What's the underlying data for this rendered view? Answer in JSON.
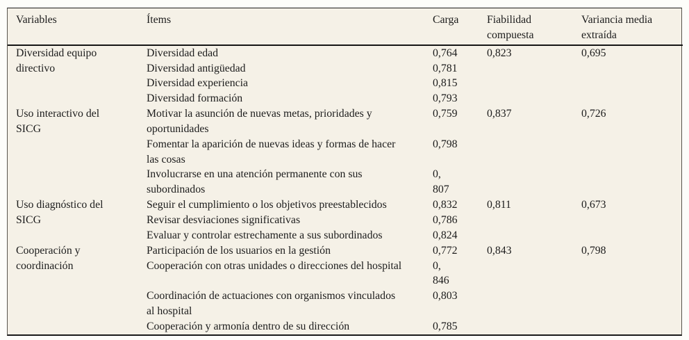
{
  "page": {
    "background": "#fdfdfa"
  },
  "table": {
    "background": "#f5f1e7",
    "rule_color": "#1a1a1a",
    "text_color": "#1c1c1c",
    "header": {
      "variables": "Variables",
      "items": "Ítems",
      "carga": "Carga",
      "fiabilidad": "Fiabilidad\ncompuesta",
      "varianza": "Variancia media\nextraída"
    },
    "groups": [
      {
        "variable": "Diversidad equipo\ndirectivo",
        "fiabilidad": "0,823",
        "varianza": "0,695",
        "items": [
          {
            "label": "Diversidad edad",
            "carga": "0,764"
          },
          {
            "label": "Diversidad antigüedad",
            "carga": "0,781"
          },
          {
            "label": "Diversidad experiencia",
            "carga": "0,815"
          },
          {
            "label": "Diversidad formación",
            "carga": "0,793"
          }
        ]
      },
      {
        "variable": "Uso interactivo del\nSICG",
        "fiabilidad": "0,837",
        "varianza": "0,726",
        "items": [
          {
            "label": "Motivar la asunción de nuevas metas, prioridades y\noportunidades",
            "carga": "0,759"
          },
          {
            "label": "Fomentar la aparición de nuevas ideas y formas de hacer\nlas cosas",
            "carga": "0,798"
          },
          {
            "label": "Involucrarse en una atención permanente con sus\nsubordinados",
            "carga": "0,\n807"
          }
        ]
      },
      {
        "variable": "Uso diagnóstico del\nSICG",
        "fiabilidad": "0,811",
        "varianza": "0,673",
        "items": [
          {
            "label": "Seguir el cumplimiento o los objetivos preestablecidos",
            "carga": "0,832"
          },
          {
            "label": "Revisar desviaciones significativas",
            "carga": "0,786"
          },
          {
            "label": "Evaluar y controlar estrechamente a sus subordinados",
            "carga": "0,824"
          }
        ]
      },
      {
        "variable": "Cooperación y\ncoordinación",
        "fiabilidad": "0,843",
        "varianza": "0,798",
        "items": [
          {
            "label": "Participación de los usuarios en la gestión",
            "carga": "0,772"
          },
          {
            "label": "Cooperación con otras unidades o direcciones del hospital",
            "carga": "0,\n846"
          },
          {
            "label": "Coordinación de actuaciones con organismos vinculados\nal hospital",
            "carga": "0,803"
          },
          {
            "label": "Cooperación y armonía dentro de su dirección",
            "carga": "0,785"
          }
        ]
      }
    ]
  }
}
